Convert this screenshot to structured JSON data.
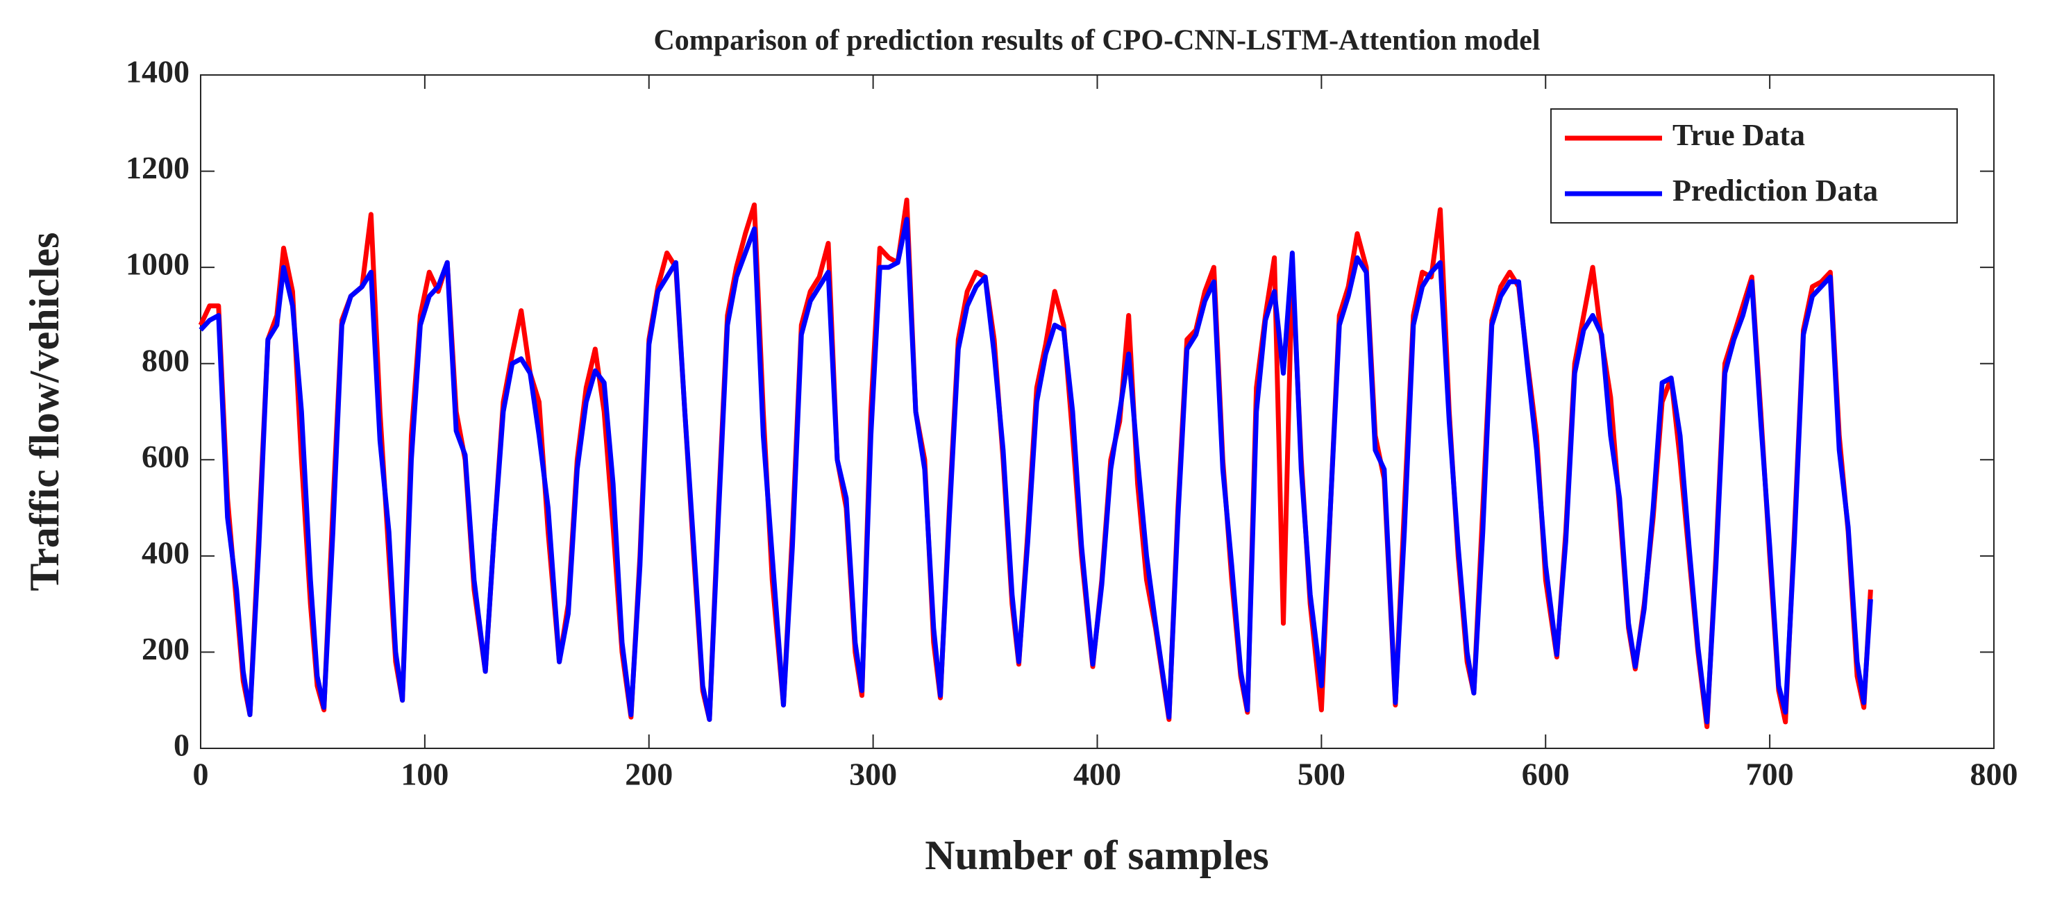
{
  "chart_data": {
    "type": "line",
    "title": "Comparison of prediction results of CPO-CNN-LSTM-Attention model",
    "x_label": "Number of samples",
    "y_label": "Traffic flow/vehicles",
    "x": [
      0,
      4,
      8,
      12,
      16,
      19,
      22,
      26,
      30,
      34,
      37,
      41,
      45,
      49,
      52,
      55,
      59,
      63,
      67,
      72,
      76,
      80,
      84,
      87,
      90,
      94,
      98,
      102,
      106,
      110,
      114,
      118,
      122,
      127,
      131,
      135,
      139,
      143,
      147,
      151,
      155,
      160,
      164,
      168,
      172,
      176,
      180,
      184,
      188,
      192,
      196,
      200,
      204,
      208,
      212,
      216,
      220,
      224,
      227,
      231,
      235,
      239,
      243,
      247,
      251,
      255,
      260,
      264,
      268,
      272,
      276,
      280,
      284,
      288,
      292,
      295,
      299,
      303,
      307,
      311,
      315,
      319,
      323,
      327,
      330,
      334,
      338,
      342,
      346,
      350,
      354,
      358,
      362,
      365,
      369,
      373,
      377,
      381,
      385,
      389,
      393,
      398,
      402,
      406,
      410,
      414,
      418,
      422,
      426,
      432,
      436,
      440,
      444,
      448,
      452,
      456,
      460,
      464,
      467,
      471,
      475,
      479,
      483,
      487,
      491,
      495,
      500,
      504,
      508,
      512,
      516,
      520,
      524,
      528,
      533,
      537,
      541,
      545,
      549,
      553,
      557,
      561,
      565,
      568,
      572,
      576,
      580,
      584,
      588,
      592,
      596,
      600,
      605,
      609,
      613,
      617,
      621,
      625,
      629,
      633,
      637,
      640,
      644,
      648,
      652,
      656,
      660,
      664,
      668,
      672,
      676,
      680,
      684,
      688,
      692,
      696,
      700,
      704,
      707,
      711,
      715,
      719,
      723,
      727,
      731,
      735,
      739,
      742,
      745
    ],
    "series": [
      {
        "name": "True Data",
        "color": "#ff0000",
        "values": [
          880,
          920,
          920,
          520,
          300,
          140,
          70,
          450,
          850,
          900,
          1040,
          950,
          600,
          300,
          130,
          80,
          500,
          890,
          940,
          960,
          1110,
          700,
          400,
          180,
          100,
          650,
          900,
          990,
          950,
          1010,
          700,
          600,
          330,
          160,
          450,
          720,
          820,
          910,
          780,
          720,
          450,
          180,
          300,
          600,
          750,
          830,
          700,
          460,
          200,
          65,
          400,
          850,
          960,
          1030,
          1000,
          700,
          400,
          120,
          60,
          500,
          900,
          1000,
          1070,
          1130,
          700,
          350,
          90,
          450,
          880,
          950,
          980,
          1050,
          600,
          500,
          200,
          110,
          700,
          1040,
          1020,
          1010,
          1140,
          700,
          600,
          220,
          105,
          500,
          850,
          950,
          990,
          980,
          850,
          600,
          300,
          175,
          450,
          750,
          840,
          950,
          880,
          650,
          400,
          170,
          350,
          600,
          680,
          900,
          550,
          350,
          250,
          60,
          500,
          850,
          870,
          950,
          1000,
          600,
          350,
          150,
          75,
          750,
          900,
          1020,
          260,
          1000,
          600,
          300,
          80,
          500,
          900,
          960,
          1070,
          1000,
          650,
          560,
          90,
          500,
          900,
          990,
          980,
          1120,
          700,
          400,
          180,
          115,
          500,
          890,
          960,
          990,
          960,
          800,
          650,
          350,
          190,
          450,
          800,
          900,
          1000,
          850,
          730,
          500,
          250,
          165,
          300,
          480,
          720,
          770,
          600,
          400,
          200,
          45,
          400,
          800,
          860,
          920,
          980,
          700,
          400,
          120,
          55,
          450,
          870,
          960,
          970,
          990,
          650,
          450,
          150,
          85,
          330
        ]
      },
      {
        "name": "Prediction Data",
        "color": "#0000ff",
        "values": [
          870,
          890,
          900,
          480,
          330,
          160,
          70,
          420,
          850,
          880,
          1000,
          920,
          700,
          350,
          150,
          85,
          450,
          880,
          940,
          960,
          990,
          640,
          450,
          200,
          100,
          600,
          880,
          940,
          960,
          1010,
          660,
          610,
          350,
          160,
          450,
          700,
          800,
          810,
          780,
          650,
          500,
          180,
          280,
          580,
          720,
          785,
          760,
          550,
          220,
          70,
          380,
          840,
          950,
          980,
          1010,
          700,
          420,
          130,
          60,
          480,
          880,
          980,
          1030,
          1080,
          650,
          400,
          90,
          420,
          860,
          930,
          960,
          990,
          600,
          520,
          220,
          120,
          650,
          1000,
          1000,
          1010,
          1100,
          700,
          580,
          250,
          110,
          480,
          830,
          920,
          960,
          980,
          820,
          620,
          320,
          180,
          430,
          720,
          820,
          880,
          870,
          700,
          420,
          175,
          340,
          580,
          700,
          820,
          600,
          400,
          260,
          65,
          480,
          830,
          860,
          930,
          970,
          580,
          380,
          160,
          80,
          700,
          890,
          950,
          780,
          1030,
          580,
          320,
          130,
          500,
          880,
          940,
          1020,
          990,
          620,
          580,
          95,
          450,
          880,
          960,
          990,
          1010,
          680,
          420,
          200,
          115,
          450,
          880,
          940,
          970,
          970,
          790,
          620,
          380,
          195,
          430,
          780,
          870,
          900,
          860,
          650,
          520,
          260,
          170,
          290,
          500,
          760,
          770,
          650,
          420,
          210,
          55,
          380,
          780,
          850,
          900,
          970,
          680,
          420,
          130,
          75,
          430,
          860,
          940,
          960,
          980,
          620,
          460,
          180,
          95,
          310
        ]
      }
    ],
    "xlim": [
      0,
      800
    ],
    "xticks": [
      0,
      100,
      200,
      300,
      400,
      500,
      600,
      700,
      800
    ],
    "ylim": [
      0,
      1400
    ],
    "yticks": [
      0,
      200,
      400,
      600,
      800,
      1000,
      1200,
      1400
    ],
    "legend": "upper right"
  }
}
